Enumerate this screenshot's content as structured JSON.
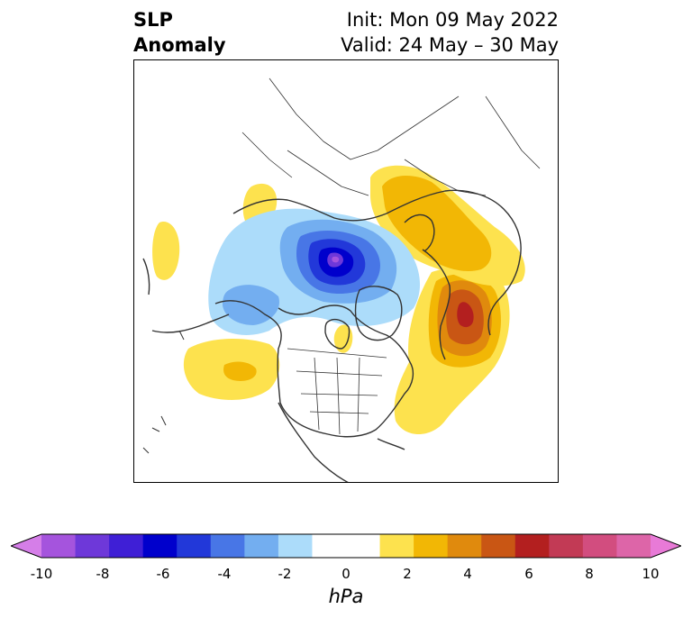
{
  "title": {
    "left_line1": "SLP",
    "left_line2": "Anomaly",
    "right_line1": "Init: Mon 09 May 2022",
    "right_line2": "Valid: 24 May – 30 May"
  },
  "map": {
    "projection": "north-polar-stereographic",
    "coastline_color": "#333333"
  },
  "colorbar": {
    "units": "hPa",
    "extend": "both",
    "tick_labels": [
      "-10",
      "-8",
      "-6",
      "-4",
      "-2",
      "0",
      "2",
      "4",
      "6",
      "8",
      "10"
    ],
    "colors": [
      "#d57ee8",
      "#a554dd",
      "#6e38d9",
      "#3f1fd6",
      "#0000cc",
      "#2238d9",
      "#4876e6",
      "#73aef0",
      "#acdcfa",
      "#ffffff",
      "#ffffff",
      "#fde24e",
      "#f2b705",
      "#e08a0d",
      "#c95614",
      "#b31f1f",
      "#c23a55",
      "#d24d7f",
      "#dd65a8",
      "#e87ad7"
    ]
  }
}
